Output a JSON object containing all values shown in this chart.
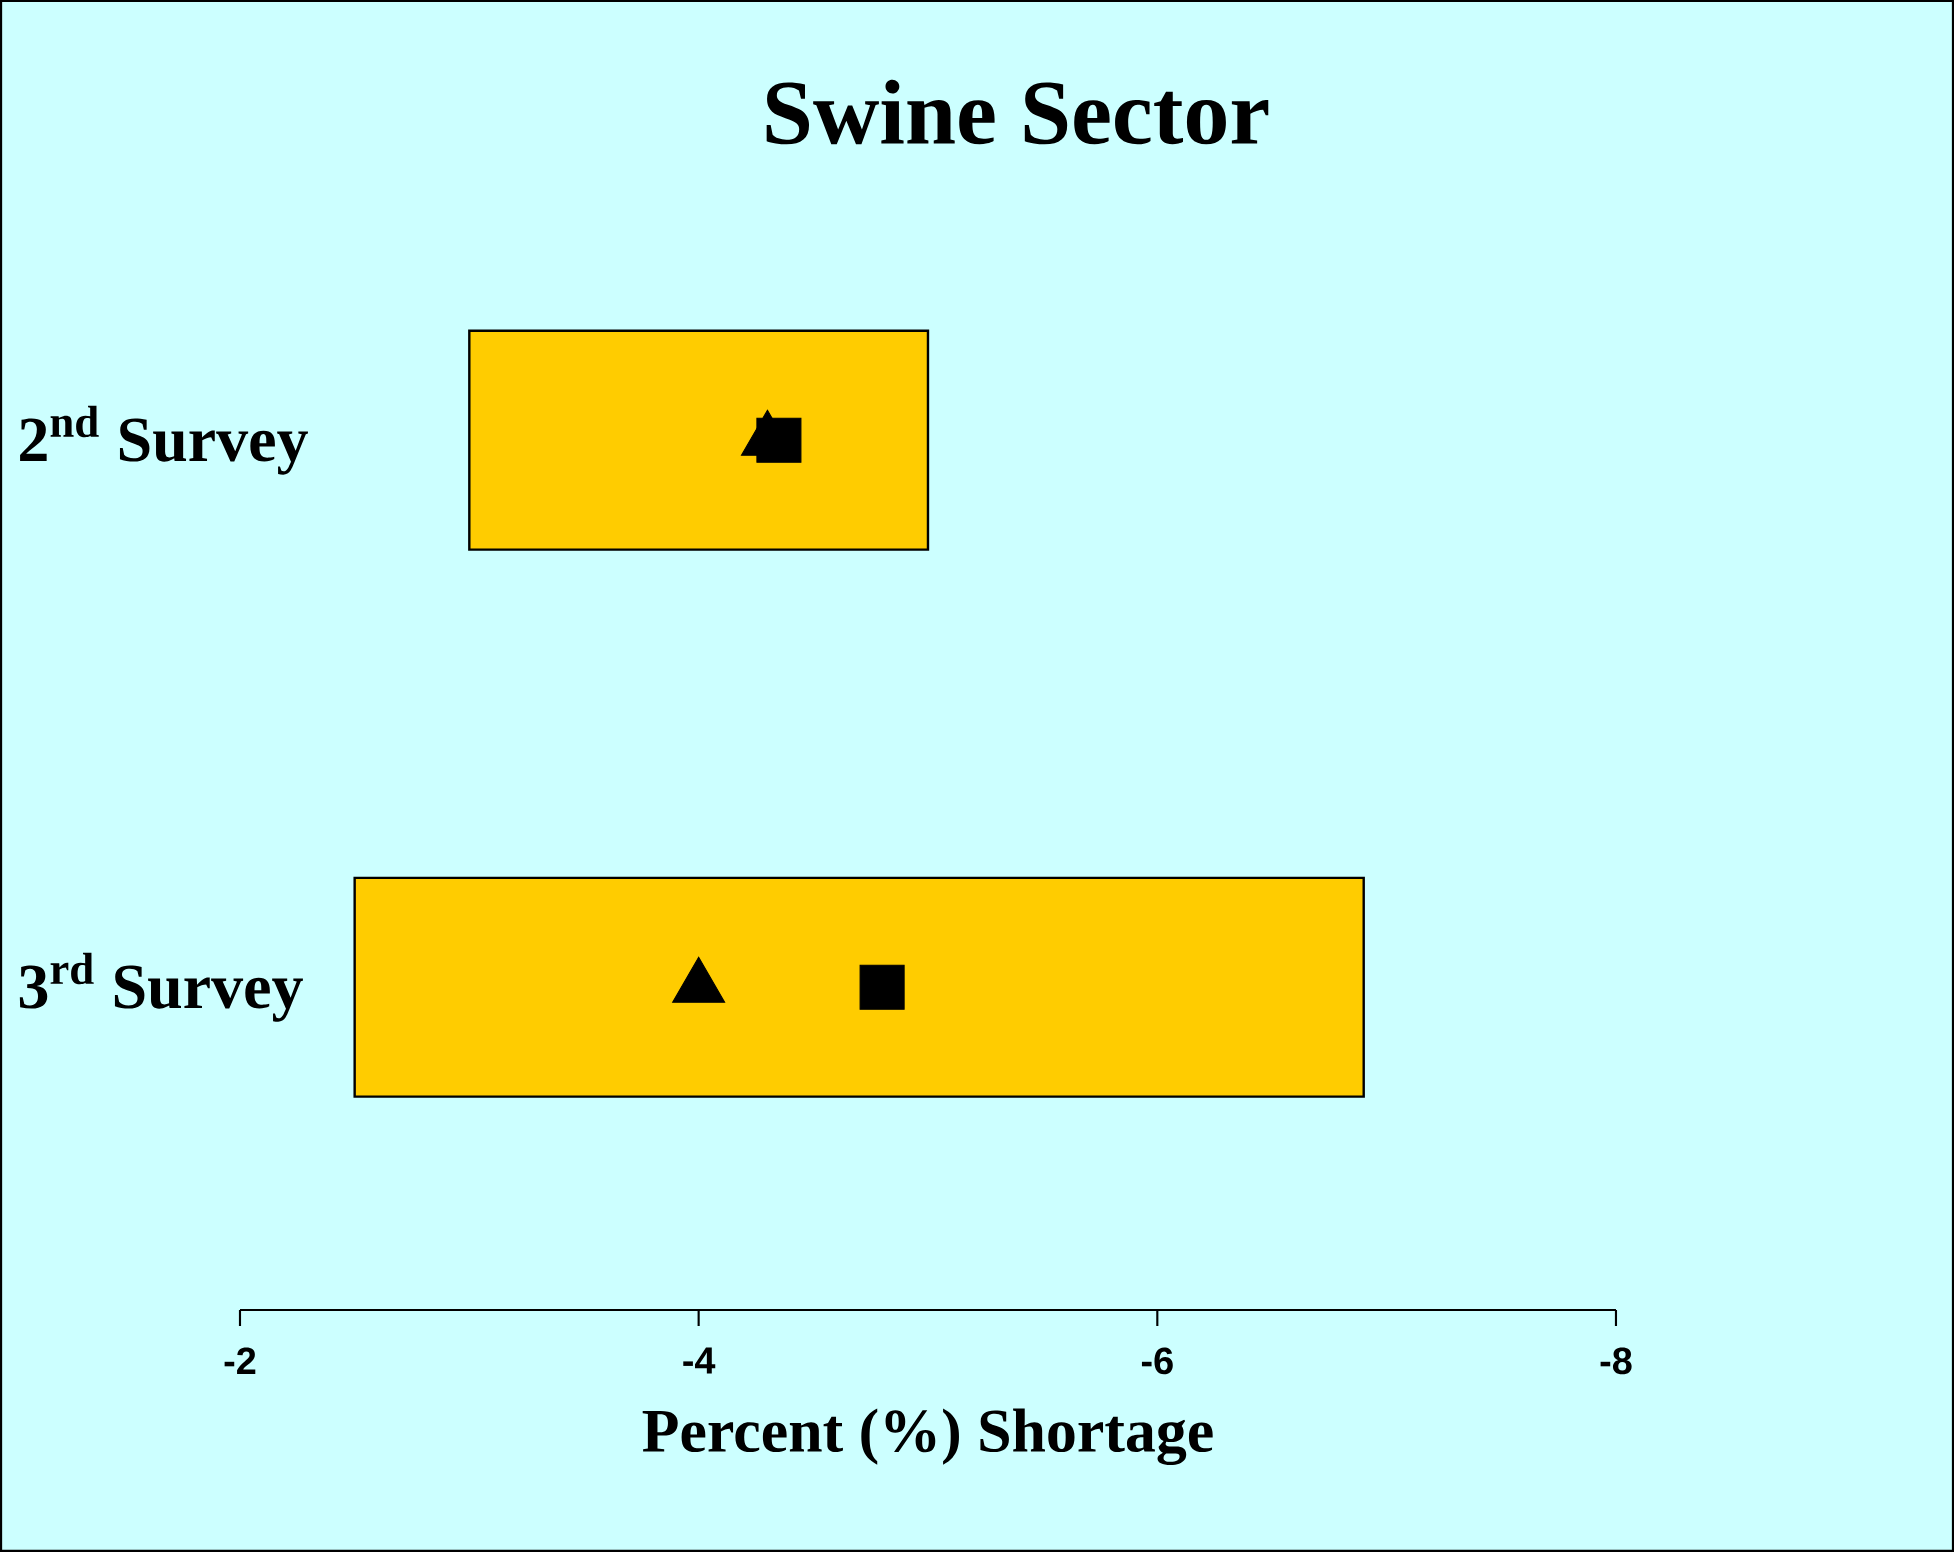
{
  "chart_data": {
    "type": "bar",
    "title": "Swine Sector",
    "xlabel": "Percent (%) Shortage",
    "orientation": "horizontal",
    "categories": [
      "2$^{nd}$ Survey",
      "3$^{rd}$ Survey"
    ],
    "xlim": [
      -2,
      -8
    ],
    "xticks": [
      {
        "value": -2,
        "label": "-2"
      },
      {
        "value": -4,
        "label": "-4"
      },
      {
        "value": -6,
        "label": "-6"
      },
      {
        "value": -8,
        "label": "-8"
      }
    ],
    "series": [
      {
        "type": "bar",
        "color": "#ffcc00",
        "base": [
          -3,
          -2.5
        ],
        "values": [
          -2,
          -4.4
        ]
      },
      {
        "type": "scatter",
        "marker": "square",
        "color": "#000000",
        "values": [
          -4.35,
          -4.8
        ]
      },
      {
        "type": "scatter",
        "marker": "triangle",
        "color": "#000000",
        "values": [
          -4.3,
          -4.0
        ]
      }
    ]
  }
}
